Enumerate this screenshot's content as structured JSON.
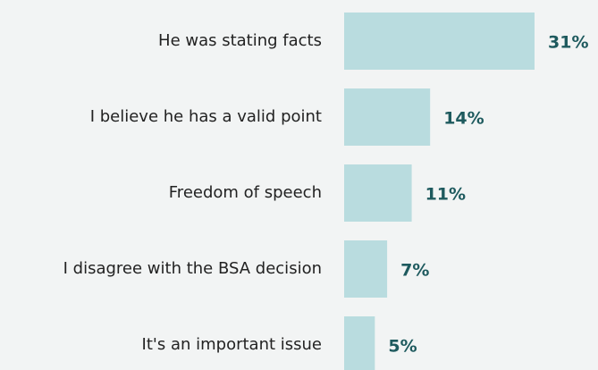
{
  "chart_data": {
    "type": "bar",
    "orientation": "horizontal",
    "categories": [
      "He was stating facts",
      "I believe he has a valid point",
      "Freedom of speech",
      "I disagree with the BSA decision",
      "It's an important issue"
    ],
    "values": [
      31,
      14,
      11,
      7,
      5
    ],
    "value_labels": [
      "31%",
      "14%",
      "11%",
      "7%",
      "5%"
    ],
    "color": "#b9dcdf"
  }
}
